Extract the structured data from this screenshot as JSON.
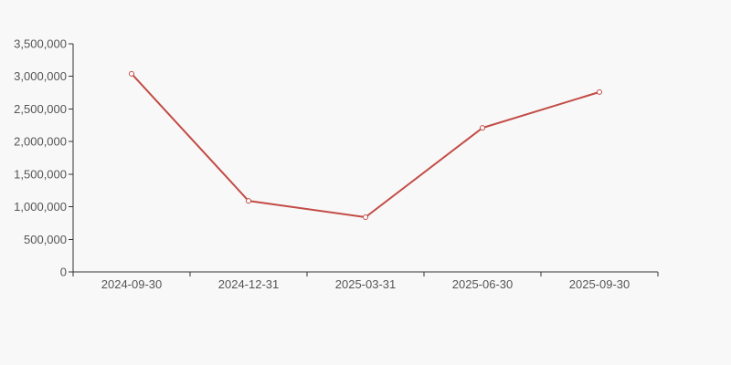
{
  "chart_data": {
    "type": "line",
    "categories": [
      "2024-09-30",
      "2024-12-31",
      "2025-03-31",
      "2025-06-30",
      "2025-09-30"
    ],
    "series": [
      {
        "name": "series-1",
        "values": [
          3040000,
          1090000,
          840000,
          2210000,
          2760000
        ]
      }
    ],
    "title": "",
    "xlabel": "",
    "ylabel": "",
    "ylim": [
      0,
      3500000
    ],
    "y_tick_step": 500000,
    "y_tick_labels": [
      "0",
      "500,000",
      "1,000,000",
      "1,500,000",
      "2,000,000",
      "2,500,000",
      "3,000,000",
      "3,500,000"
    ],
    "grid": false,
    "legend": false,
    "marker": "open-circle",
    "colors": {
      "line": "#c34b46",
      "marker_fill": "#ffffff",
      "axis": "#333333",
      "label": "#555555",
      "background": "#f8f8f8"
    }
  }
}
